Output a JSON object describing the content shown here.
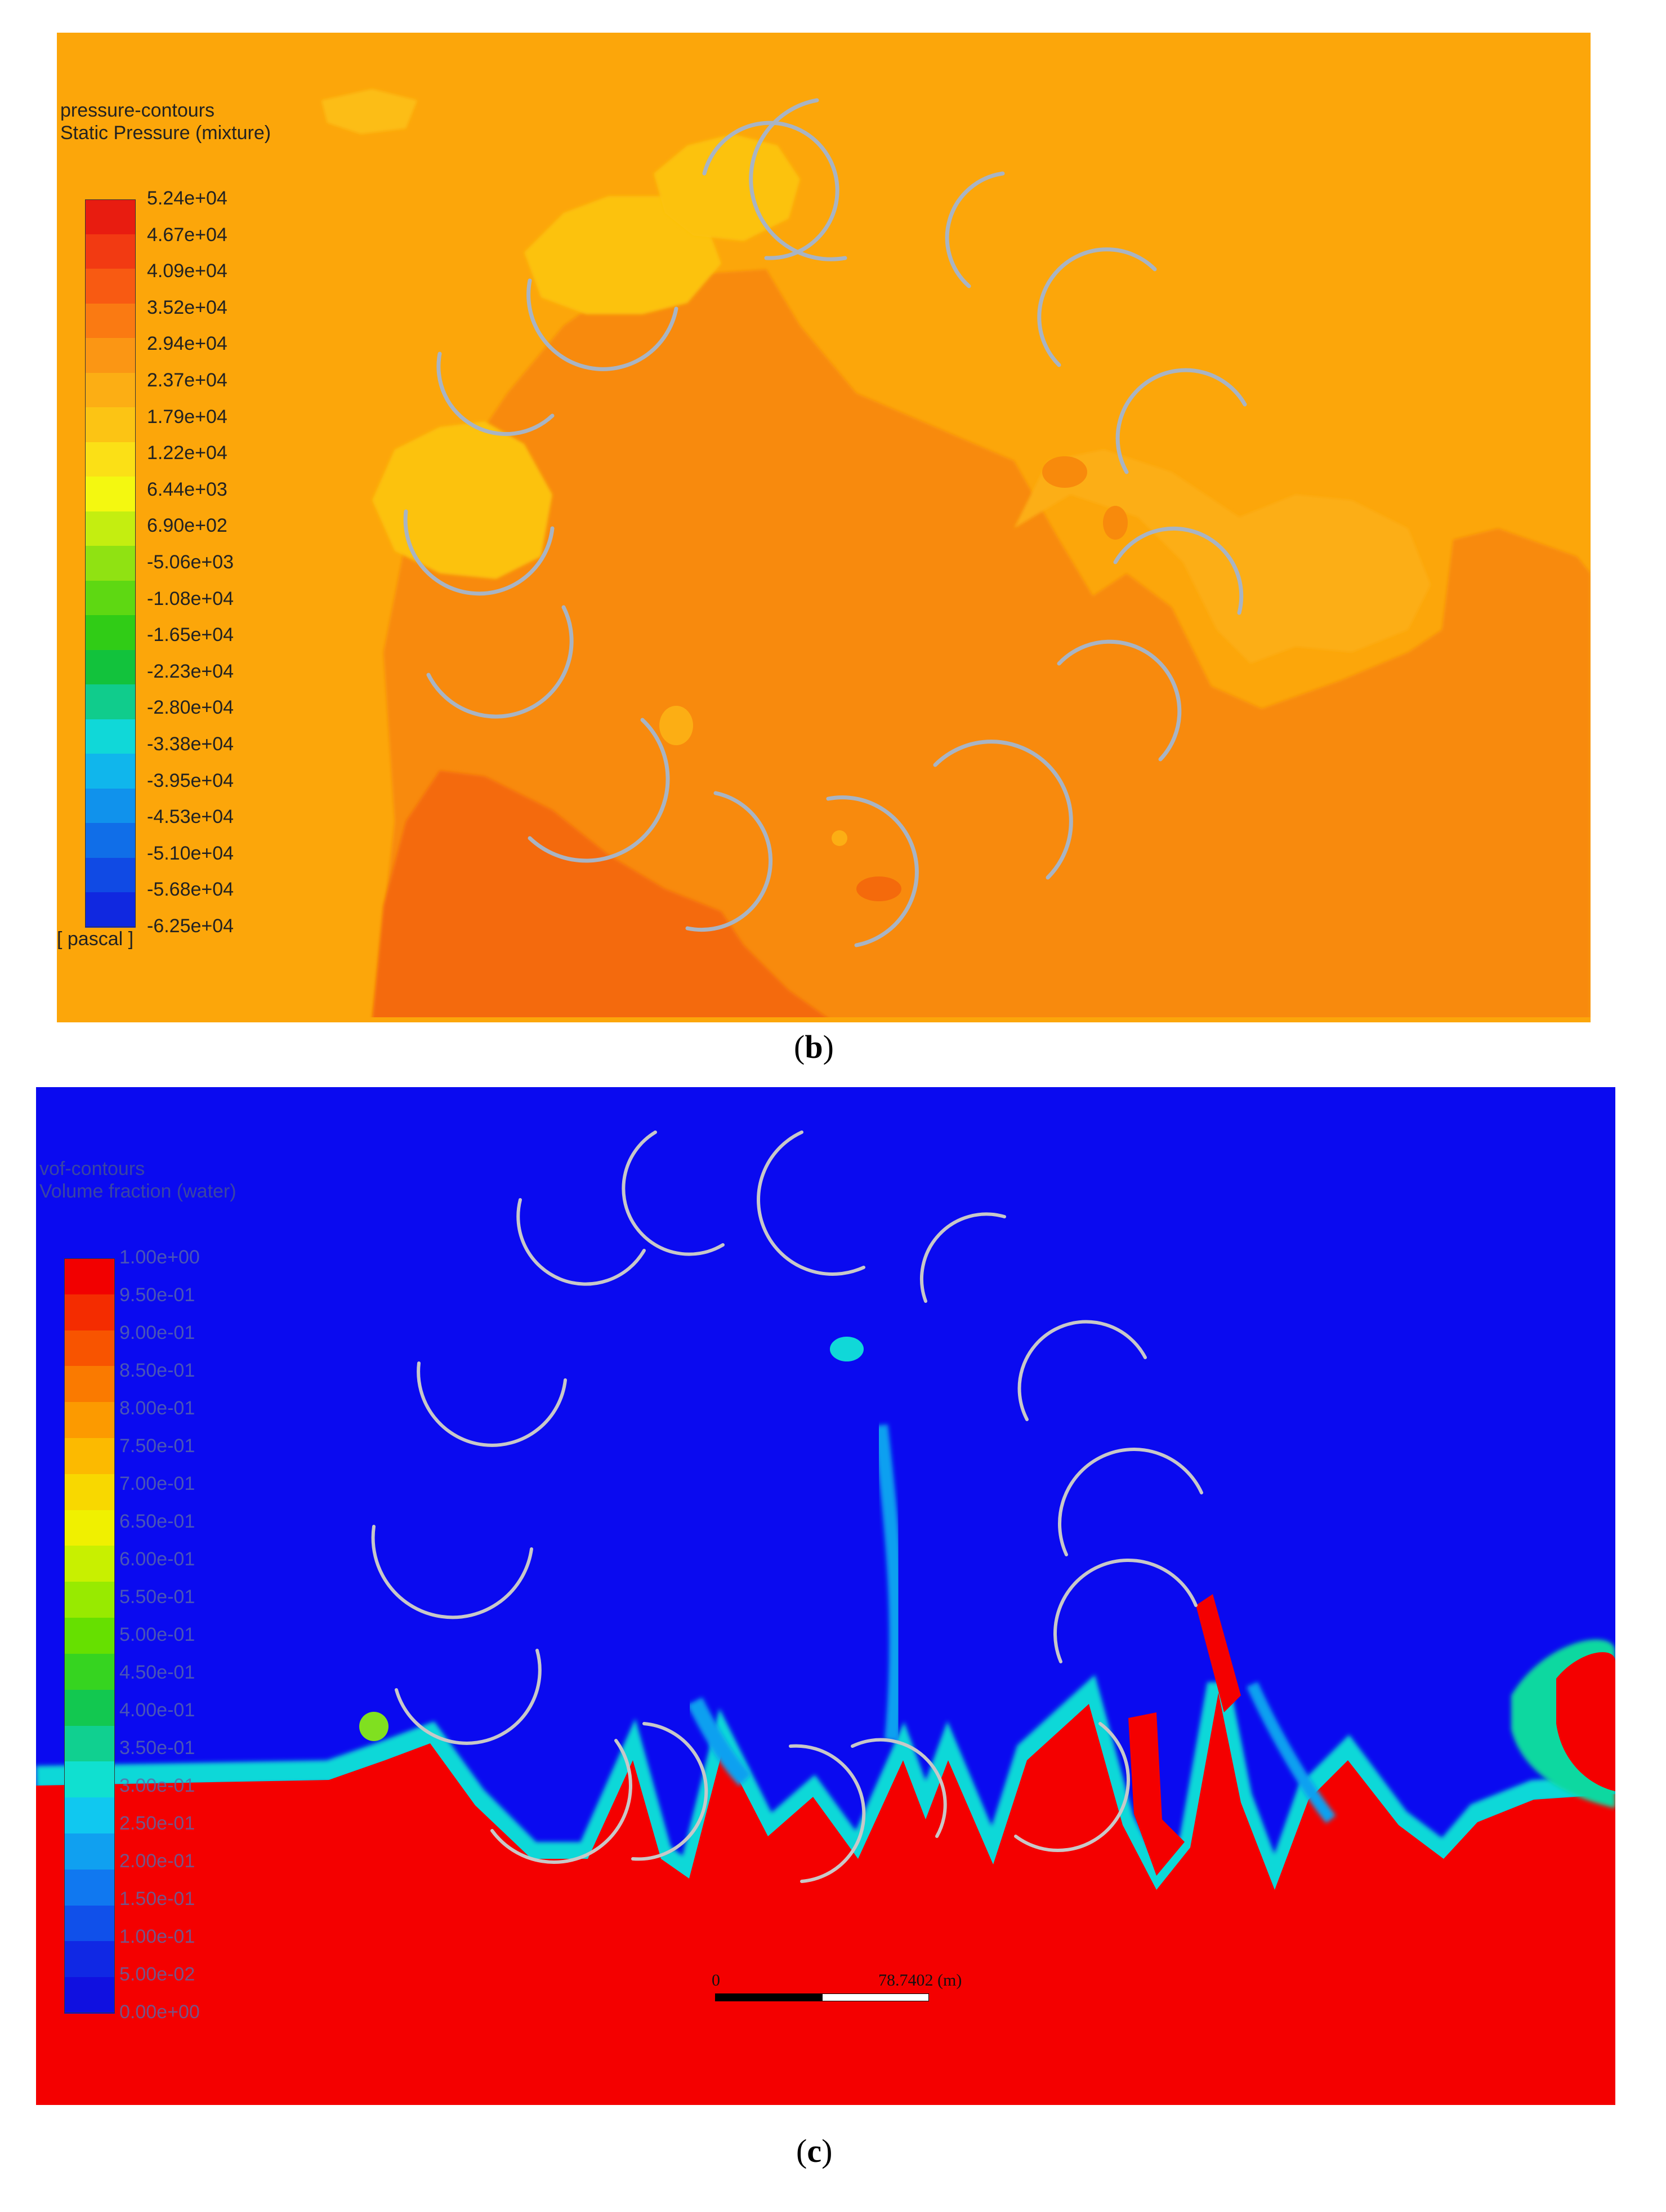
{
  "panel_b": {
    "legend_title": "pressure-contours",
    "legend_subtitle": "Static Pressure (mixture)",
    "unit": "[ pascal ]",
    "panel_label_open": "(",
    "panel_label_letter": "b",
    "panel_label_close": ")",
    "colorbar_ticks": [
      "5.24e+04",
      "4.67e+04",
      "4.09e+04",
      "3.52e+04",
      "2.94e+04",
      "2.37e+04",
      "1.79e+04",
      "1.22e+04",
      "6.44e+03",
      "6.90e+02",
      "-5.06e+03",
      "-1.08e+04",
      "-1.65e+04",
      "-2.23e+04",
      "-2.80e+04",
      "-3.38e+04",
      "-3.95e+04",
      "-4.53e+04",
      "-5.10e+04",
      "-5.68e+04",
      "-6.25e+04"
    ],
    "colorbar_colors": [
      "#e81c10",
      "#f23a12",
      "#f85a12",
      "#fa7a12",
      "#fb9614",
      "#fcae14",
      "#fcc414",
      "#fbe016",
      "#f4f810",
      "#c4ee10",
      "#90e212",
      "#5ed812",
      "#30cc16",
      "#12c23c",
      "#10cc8c",
      "#10d8d8",
      "#10b6ec",
      "#1092ec",
      "#106ee8",
      "#104ae4",
      "#1028e0"
    ],
    "field_colors": {
      "background": "#fca60a",
      "mid": "#f88a0c",
      "low": "#f46a0c",
      "high": "#fcc210",
      "blade": "#a8b4c4"
    }
  },
  "panel_c": {
    "legend_title": "vof-contours",
    "legend_subtitle": "Volume fraction (water)",
    "panel_label_open": "(",
    "panel_label_letter": "c",
    "panel_label_close": ")",
    "colorbar_ticks": [
      "1.00e+00",
      "9.50e-01",
      "9.00e-01",
      "8.50e-01",
      "8.00e-01",
      "7.50e-01",
      "7.00e-01",
      "6.50e-01",
      "6.00e-01",
      "5.50e-01",
      "5.00e-01",
      "4.50e-01",
      "4.00e-01",
      "3.50e-01",
      "3.00e-01",
      "2.50e-01",
      "2.00e-01",
      "1.50e-01",
      "1.00e-01",
      "5.00e-02",
      "0.00e+00"
    ],
    "colorbar_colors": [
      "#f20000",
      "#f42c00",
      "#f85400",
      "#fa7a00",
      "#fc9a00",
      "#fcba00",
      "#f8d800",
      "#f0f000",
      "#c8f000",
      "#98ea00",
      "#66e000",
      "#36d420",
      "#12c850",
      "#10d090",
      "#10e0d0",
      "#10c8f0",
      "#10a0f0",
      "#1078f0",
      "#1050ea",
      "#1028e4",
      "#1010e0"
    ],
    "scale_bar": {
      "start": "0",
      "end": "78.7402 (m)"
    },
    "field_colors": {
      "air": "#0a0af0",
      "water": "#f40000",
      "interface": "#10d8d8",
      "blade": "#c8c8c8"
    }
  }
}
